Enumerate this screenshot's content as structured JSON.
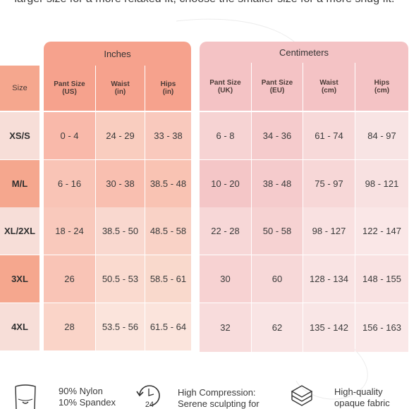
{
  "intro": "larger size for a more relaxed fit, choose the smaller size for a more snug fit.",
  "groups": {
    "inches": "Inches",
    "centimeters": "Centimeters"
  },
  "headers": {
    "size": "Size",
    "in_pant_1": "Pant Size",
    "in_pant_2": "(US)",
    "in_waist_1": "Waist",
    "in_waist_2": "(in)",
    "in_hips_1": "Hips",
    "in_hips_2": "(in)",
    "cm_pant_uk_1": "Pant Size",
    "cm_pant_uk_2": "(UK)",
    "cm_pant_eu_1": "Pant Size",
    "cm_pant_eu_2": "(EU)",
    "cm_waist_1": "Waist",
    "cm_waist_2": "(cm)",
    "cm_hips_1": "Hips",
    "cm_hips_2": "(cm)"
  },
  "rows": [
    {
      "size": "XS/S",
      "pant_us": "0 - 4",
      "waist_in": "24 - 29",
      "hips_in": "33 - 38",
      "pant_uk": "6 - 8",
      "pant_eu": "34 - 36",
      "waist_cm": "61 - 74",
      "hips_cm": "84 - 97"
    },
    {
      "size": "M/L",
      "pant_us": "6 - 16",
      "waist_in": "30 - 38",
      "hips_in": "38.5 - 48",
      "pant_uk": "10 - 20",
      "pant_eu": "38 - 48",
      "waist_cm": "75 - 97",
      "hips_cm": "98 - 121"
    },
    {
      "size": "XL/2XL",
      "pant_us": "18 - 24",
      "waist_in": "38.5 - 50",
      "hips_in": "48.5 - 58",
      "pant_uk": "22 - 28",
      "pant_eu": "50 - 58",
      "waist_cm": "98 - 127",
      "hips_cm": "122 - 147"
    },
    {
      "size": "3XL",
      "pant_us": "26",
      "waist_in": "50.5 - 53",
      "hips_in": "58.5 - 61",
      "pant_uk": "30",
      "pant_eu": "60",
      "waist_cm": "128 - 134",
      "hips_cm": "148 - 155"
    },
    {
      "size": "4XL",
      "pant_us": "28",
      "waist_in": "53.5 - 56",
      "hips_in": "61.5 - 64",
      "pant_uk": "32",
      "pant_eu": "62",
      "waist_cm": "135 - 142",
      "hips_cm": "156 - 163"
    }
  ],
  "features": {
    "fabric_line1": "90% Nylon",
    "fabric_line2": "10% Spandex",
    "compression_line1": "High Compression:",
    "compression_line2": "Serene sculpting for",
    "opaque_line1": "High-quality",
    "opaque_line2": "opaque fabric",
    "clock_number": "24"
  },
  "icons": {
    "fabric": "leggings-icon",
    "compression": "24-hour-clock-icon",
    "opaque": "fabric-layers-icon"
  },
  "colors": {
    "size_column": "#f5a78e",
    "inches_header": "#f6a28d",
    "centimeters_header": "#f4c3c5"
  }
}
